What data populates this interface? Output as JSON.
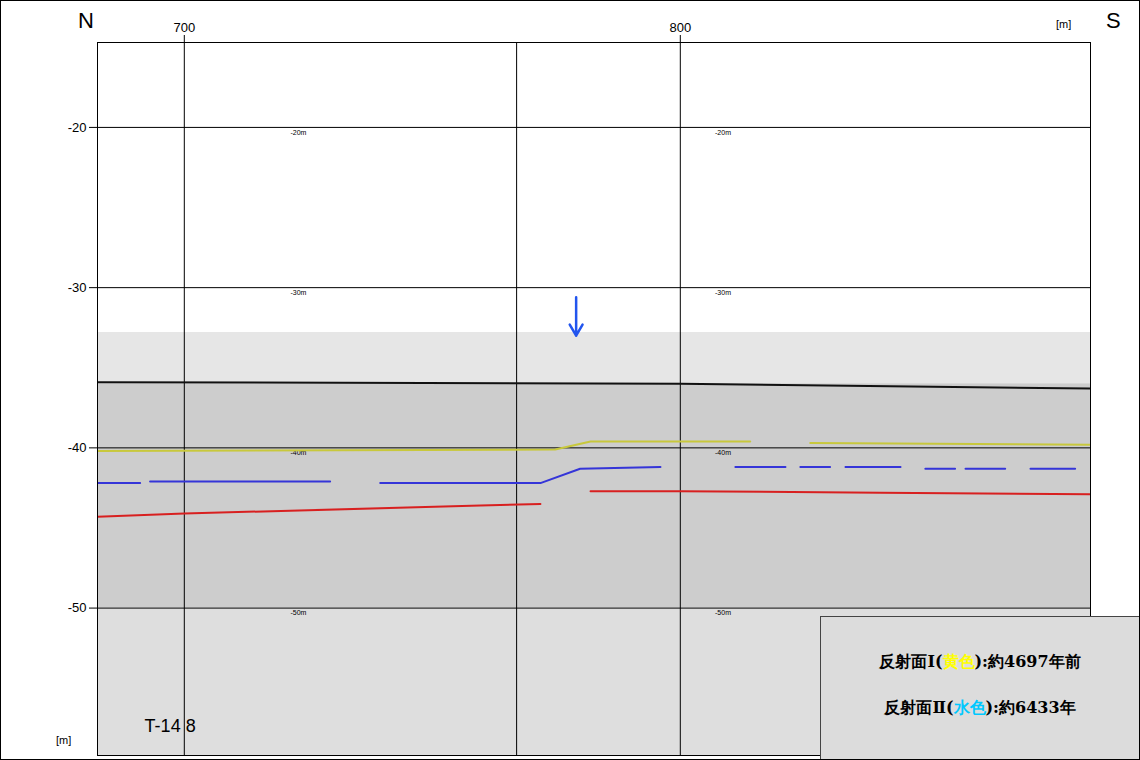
{
  "chart_data": {
    "type": "line",
    "xlim": [
      682.5,
      882.7
    ],
    "ylim": [
      -59.2,
      -14.7
    ],
    "xticks": [
      700,
      800
    ],
    "yticks": [
      -20,
      -30,
      -40,
      -50
    ],
    "grid": true,
    "xlabel": "[m]",
    "ylabel": "[m]",
    "direction_labels": [
      "N",
      "S"
    ],
    "vlines": [
      700,
      767,
      800
    ],
    "inner_tick_labels": [
      {
        "value": -20,
        "label": "-20m"
      },
      {
        "value": -30,
        "label": "-30m"
      },
      {
        "value": -40,
        "label": "-40m"
      },
      {
        "value": -50,
        "label": "-50m"
      }
    ],
    "inner_tick_label_x": [
      721.4,
      807
    ],
    "profile_label": {
      "text": "T-14 8",
      "x": 692,
      "y": -57.4
    },
    "section_bands": [
      {
        "y": [
          -32.8,
          -36
        ],
        "color": "#e6e6e6"
      },
      {
        "y": [
          -36,
          -50
        ],
        "color": "#cdcdcd"
      },
      {
        "y": [
          -50,
          -59.2
        ],
        "color": "#dedede"
      }
    ],
    "fault_arrow": {
      "x": 779,
      "y_from": -30.6,
      "y_to": -33,
      "color": "#2255ee"
    },
    "series": [
      {
        "color": "#111111",
        "x": [
          682.5,
          800,
          882.7
        ],
        "values": [
          -35.9,
          -36.0,
          -36.3
        ]
      },
      {
        "color": "#c8c83c",
        "x": [
          682.5,
          774.8,
          781.9,
          814.1,
          820,
          826.2,
          882.7
        ],
        "values": [
          -40.2,
          -40.1,
          -39.6,
          -39.6,
          null,
          -39.7,
          -39.8
        ]
      },
      {
        "color": "#3535d8",
        "x": [
          682.5,
          691.1,
          692.1,
          693.1,
          729.4,
          734.5,
          739.5,
          771.8,
          779.8,
          796,
          803.5,
          811.1,
          821.2,
          822.7,
          824.2,
          830.2,
          831.7,
          833.3,
          844.4,
          846.9,
          849.4,
          855.4,
          856.5,
          857.5,
          865.5,
          868,
          870.6,
          879.6
        ],
        "values": [
          -42.2,
          -42.2,
          null,
          -42.1,
          -42.1,
          null,
          -42.2,
          -42.2,
          -41.3,
          -41.2,
          null,
          -41.2,
          -41.2,
          null,
          -41.2,
          -41.2,
          null,
          -41.2,
          -41.2,
          null,
          -41.3,
          -41.3,
          null,
          -41.3,
          -41.3,
          null,
          -41.3,
          -41.3
        ]
      },
      {
        "color": "#d82020",
        "x": [
          682.5,
          700,
          759.7,
          771.8,
          776,
          781.9,
          800,
          840.3,
          882.7
        ],
        "values": [
          -44.3,
          -44.1,
          -43.6,
          -43.5,
          null,
          -42.7,
          -42.7,
          -42.8,
          -42.9
        ]
      }
    ],
    "legend": "bottom-right",
    "legend_box": [
      {
        "label": "反射面Ⅰ(黄色):約4697年前",
        "color_word": "黄色",
        "color": "#ffff00"
      },
      {
        "label": "反射面Ⅱ(水色):約6433年",
        "color_word": "水色",
        "color": "#00c8ff"
      }
    ]
  }
}
